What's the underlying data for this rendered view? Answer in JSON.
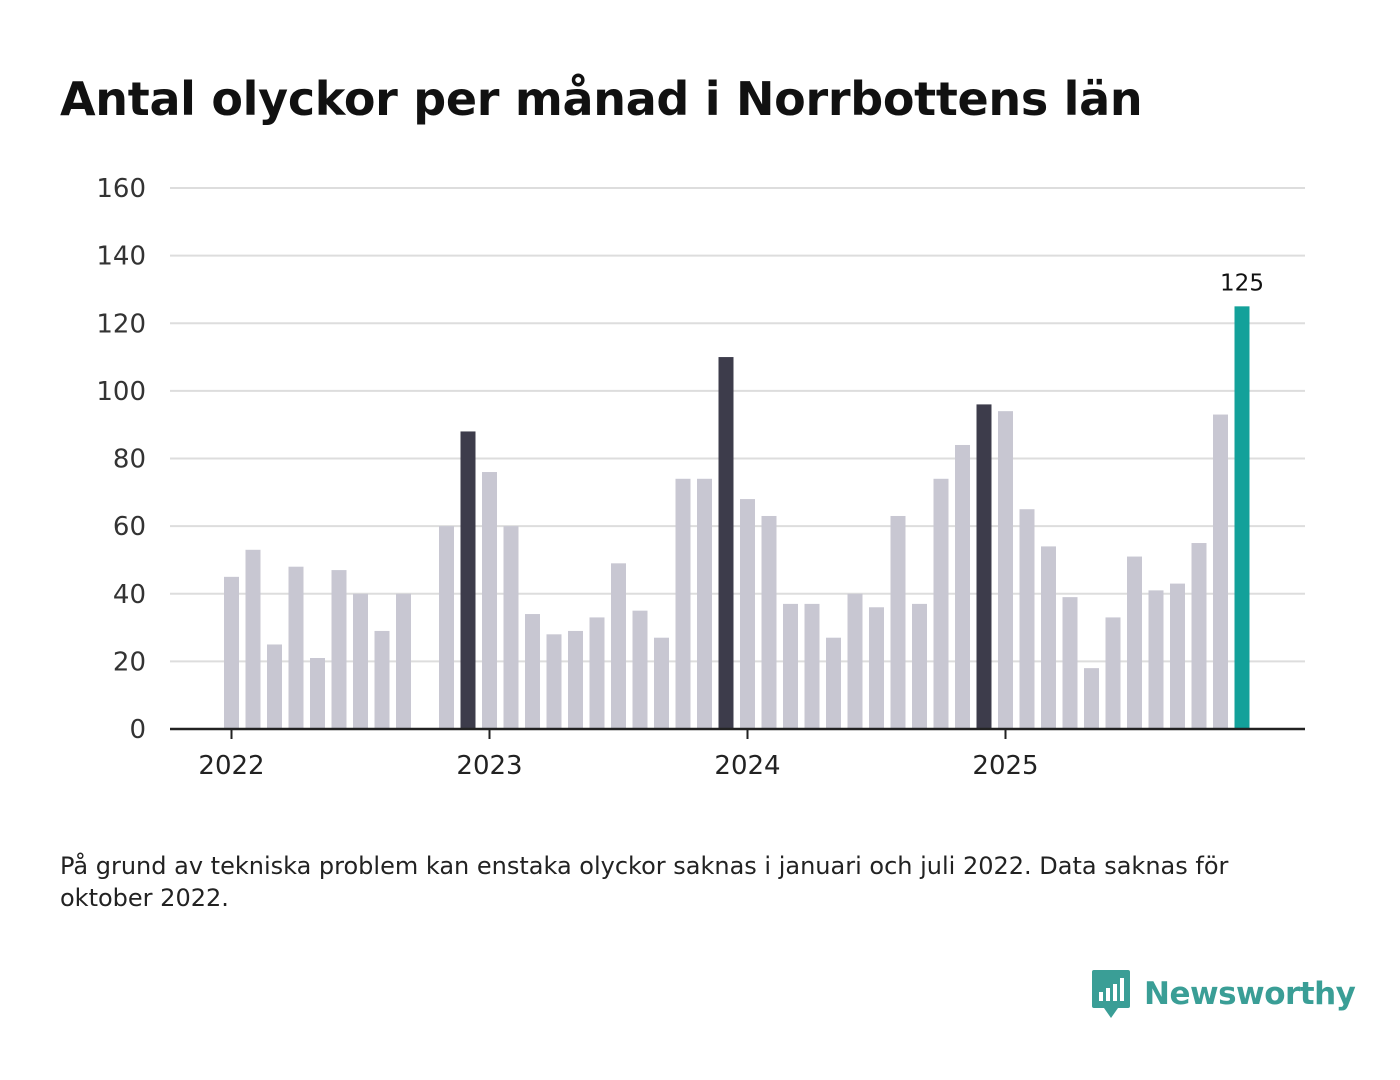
{
  "title": "Antal olyckor per månad i Norrbottens län",
  "note": "På grund av tekniska problem kan enstaka olyckor saknas i januari och juli 2022. Data saknas för oktober 2022.",
  "brand": {
    "name": "Newsworthy",
    "color": "#3a9e96"
  },
  "colors": {
    "default_bar": "#c8c7d2",
    "december_bar": "#3d3c4b",
    "latest_bar": "#13a19a",
    "grid": "#dddddd",
    "axis": "#222222"
  },
  "chart_data": {
    "type": "bar",
    "title": "Antal olyckor per månad i Norrbottens län",
    "xlabel": "",
    "ylabel": "",
    "ylim": [
      0,
      160
    ],
    "yticks": [
      0,
      20,
      40,
      60,
      80,
      100,
      120,
      140,
      160
    ],
    "grid": true,
    "xtick_labels": [
      "2022",
      "2023",
      "2024",
      "2025"
    ],
    "categories": [
      "2022-01",
      "2022-02",
      "2022-03",
      "2022-04",
      "2022-05",
      "2022-06",
      "2022-07",
      "2022-08",
      "2022-09",
      "2022-10",
      "2022-11",
      "2022-12",
      "2023-01",
      "2023-02",
      "2023-03",
      "2023-04",
      "2023-05",
      "2023-06",
      "2023-07",
      "2023-08",
      "2023-09",
      "2023-10",
      "2023-11",
      "2023-12",
      "2024-01",
      "2024-02",
      "2024-03",
      "2024-04",
      "2024-05",
      "2024-06",
      "2024-07",
      "2024-08",
      "2024-09",
      "2024-10",
      "2024-11",
      "2024-12",
      "2025-01",
      "2025-02",
      "2025-03",
      "2025-04",
      "2025-05",
      "2025-06",
      "2025-07",
      "2025-08",
      "2025-09",
      "2025-10",
      "2025-11",
      "2025-12"
    ],
    "values": [
      45,
      53,
      25,
      48,
      21,
      47,
      40,
      29,
      40,
      null,
      60,
      88,
      76,
      60,
      34,
      28,
      29,
      33,
      49,
      35,
      27,
      74,
      74,
      110,
      68,
      63,
      37,
      37,
      27,
      40,
      36,
      63,
      37,
      74,
      84,
      96,
      94,
      65,
      54,
      39,
      18,
      33,
      51,
      41,
      43,
      55,
      93,
      125
    ],
    "highlight": {
      "index": 47,
      "label": "125"
    }
  }
}
